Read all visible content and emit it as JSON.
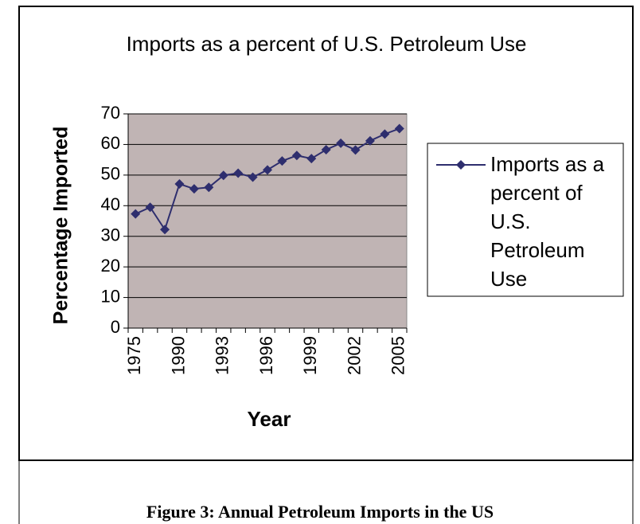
{
  "chart_data": {
    "type": "line",
    "title": "Imports as a percent of U.S. Petroleum Use",
    "x_label": "Year",
    "y_label": "Percentage Imported",
    "categories": [
      1975,
      null,
      null,
      1990,
      null,
      null,
      1993,
      null,
      null,
      1996,
      null,
      null,
      1999,
      null,
      null,
      2002,
      null,
      null,
      2005
    ],
    "series": [
      {
        "name": "Imports as a percent of U.S. Petroleum Use",
        "color": "#2e2e6e",
        "values": [
          37.3,
          39.5,
          32.2,
          47.1,
          45.5,
          46.0,
          49.9,
          50.6,
          49.3,
          51.7,
          54.6,
          56.4,
          55.4,
          58.3,
          60.4,
          58.2,
          61.2,
          63.4,
          65.2
        ]
      }
    ],
    "ylim": [
      0,
      70
    ],
    "yticks": [
      0,
      10,
      20,
      30,
      40,
      50,
      60,
      70
    ],
    "grid": true,
    "plot_background": "#c0b4b4",
    "legend": "right"
  },
  "caption": "Figure 3: Annual Petroleum Imports in the US"
}
